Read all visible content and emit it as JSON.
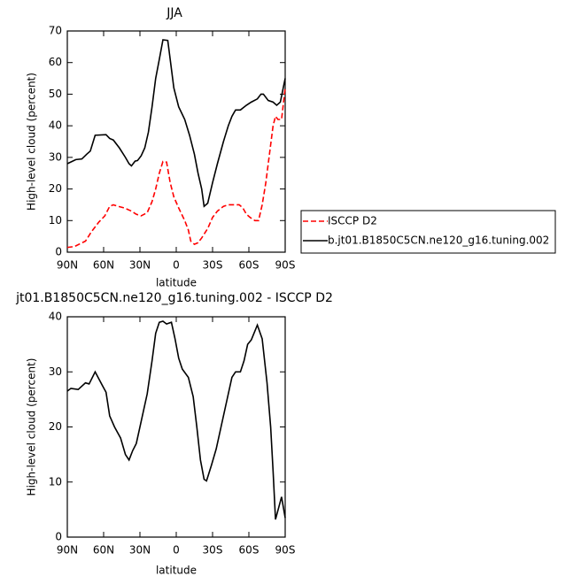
{
  "chart_data": [
    {
      "type": "line",
      "title": "JJA",
      "xlabel": "latitude",
      "ylabel": "High-level cloud (percent)",
      "xlim": [
        90,
        -90
      ],
      "ylim": [
        0,
        70
      ],
      "xticks": [
        {
          "value": 90,
          "label": "90N"
        },
        {
          "value": 60,
          "label": "60N"
        },
        {
          "value": 30,
          "label": "30N"
        },
        0,
        {
          "value": -30,
          "label": "30S"
        },
        {
          "value": -60,
          "label": "60S"
        },
        {
          "value": -90,
          "label": "90S"
        }
      ],
      "yticks": [
        0,
        10,
        20,
        30,
        40,
        50,
        60,
        70
      ],
      "legend": "right",
      "series": [
        {
          "name": "ISCCP D2",
          "color": "#ff0000",
          "line_style": "dashed",
          "x": [
            90,
            84,
            75,
            70,
            64,
            59,
            55,
            52,
            48,
            43,
            37,
            33,
            29,
            24,
            20,
            17,
            14,
            11,
            8,
            5,
            2,
            -2,
            -7,
            -10,
            -12,
            -15,
            -18,
            -21,
            -26,
            -30,
            -34,
            -39,
            -43,
            -48,
            -52,
            -55,
            -58,
            -61,
            -65,
            -68,
            -71,
            -74,
            -77,
            -80,
            -82,
            -84,
            -87,
            -90
          ],
          "values": [
            1.5,
            1.8,
            3.5,
            6.5,
            9.5,
            11.5,
            14.5,
            15,
            14.5,
            14,
            13,
            12,
            11.5,
            12.5,
            16,
            20,
            25,
            28.7,
            28.5,
            22,
            17.5,
            14,
            10,
            7,
            3.5,
            2.5,
            3,
            4.5,
            7.5,
            11,
            13,
            14.5,
            15,
            15,
            15,
            14,
            12,
            11,
            10,
            10,
            15,
            22,
            31,
            40,
            43,
            42,
            42,
            52
          ]
        },
        {
          "name": "b.jt01.B1850C5CN.ne120_g16.tuning.002",
          "color": "#000000",
          "line_style": "solid",
          "x": [
            90,
            83,
            78,
            74,
            71,
            67,
            58,
            55,
            52,
            47,
            42,
            39,
            37,
            34,
            32,
            29,
            26,
            23,
            20,
            17,
            14,
            11,
            7,
            5,
            2,
            -2,
            -7,
            -11,
            -15,
            -18,
            -21,
            -23,
            -26,
            -30,
            -34,
            -39,
            -43,
            -46,
            -49,
            -53,
            -58,
            -62,
            -67,
            -70,
            -72,
            -76,
            -80,
            -83,
            -86,
            -90
          ],
          "values": [
            28,
            29.3,
            29.5,
            31,
            32,
            37,
            37.2,
            36,
            35.5,
            33,
            30,
            28,
            27.3,
            28.8,
            29,
            30.5,
            33,
            38,
            46,
            55,
            61,
            67.2,
            67,
            61,
            52,
            46,
            42,
            37,
            31,
            25,
            20,
            14.5,
            15.5,
            22,
            28,
            35,
            40,
            43,
            45,
            45,
            46.5,
            47.5,
            48.5,
            50,
            50,
            48,
            47.5,
            46.5,
            47.5,
            55
          ]
        }
      ]
    },
    {
      "type": "line",
      "title": "jt01.B1850C5CN.ne120_g16.tuning.002 - ISCCP D2",
      "xlabel": "latitude",
      "ylabel": "High-level cloud (percent)",
      "xlim": [
        90,
        -90
      ],
      "ylim": [
        0,
        40
      ],
      "xticks": [
        {
          "value": 90,
          "label": "90N"
        },
        {
          "value": 60,
          "label": "60N"
        },
        {
          "value": 30,
          "label": "30N"
        },
        0,
        {
          "value": -30,
          "label": "30S"
        },
        {
          "value": -60,
          "label": "60S"
        },
        {
          "value": -90,
          "label": "90S"
        }
      ],
      "yticks": [
        0,
        10,
        20,
        30,
        40
      ],
      "series": [
        {
          "color": "#000000",
          "line_style": "solid",
          "x": [
            90,
            87,
            81,
            75,
            72,
            67,
            61,
            58,
            55,
            51,
            46,
            42,
            39,
            36,
            33,
            29,
            24,
            20,
            17,
            14,
            11,
            8,
            4,
            1,
            -2,
            -5,
            -10,
            -14,
            -17,
            -20,
            -23,
            -25,
            -29,
            -33,
            -37,
            -42,
            -46,
            -49,
            -53,
            -56,
            -59,
            -62,
            -67,
            -71,
            -75,
            -78,
            -80,
            -82,
            -87,
            -90
          ],
          "values": [
            26.5,
            27,
            26.8,
            28,
            27.8,
            30,
            27.5,
            26.3,
            22,
            20,
            18,
            15,
            14,
            15.7,
            17,
            21,
            26,
            32,
            37,
            39,
            39.2,
            38.7,
            39,
            36,
            32.5,
            30.5,
            29,
            25.5,
            20,
            14,
            10.5,
            10.2,
            13,
            16,
            20,
            25,
            29,
            30,
            30,
            32,
            35,
            35.8,
            38.5,
            36,
            28,
            20,
            12,
            3.2,
            7.3,
            3.5
          ]
        }
      ]
    }
  ]
}
